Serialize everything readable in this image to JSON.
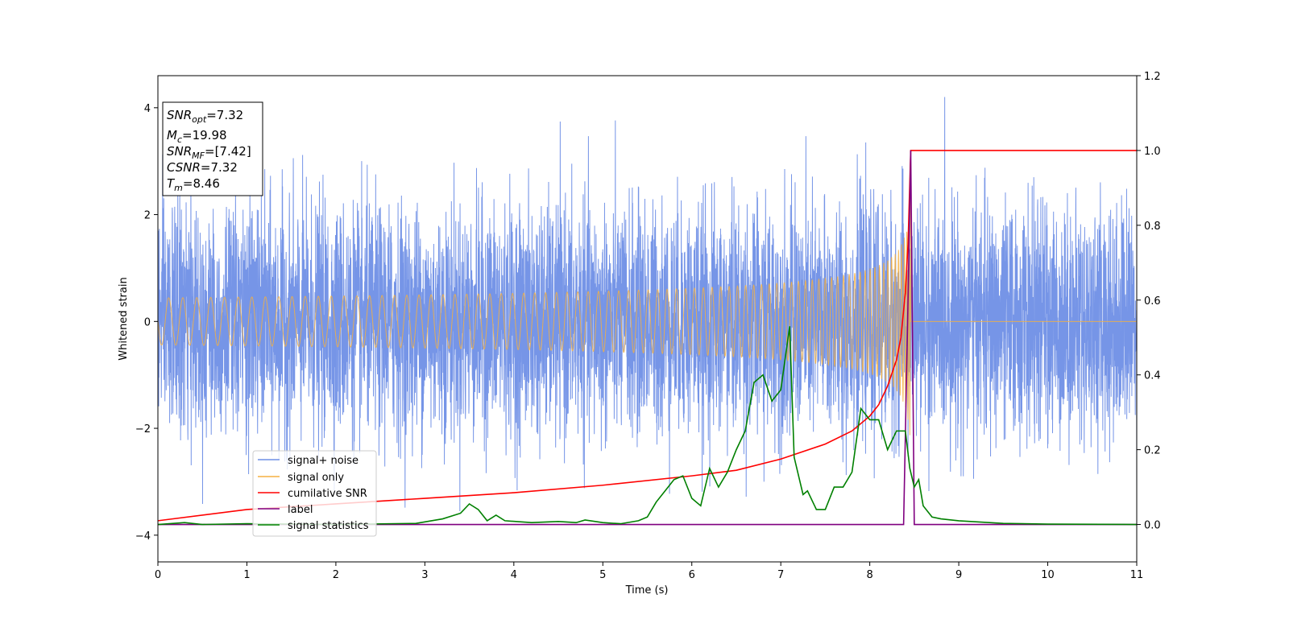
{
  "chart_data": {
    "type": "line",
    "xlabel": "Time (s)",
    "ylabel": "Whitened strain",
    "xlim": [
      0,
      11
    ],
    "ylim_left": [
      -4.5,
      4.6
    ],
    "ylim_right": [
      -0.1,
      1.2
    ],
    "x_ticks": [
      0,
      1,
      2,
      3,
      4,
      5,
      6,
      7,
      8,
      9,
      10,
      11
    ],
    "y_ticks_left": [
      -4,
      -2,
      0,
      2,
      4
    ],
    "y_ticks_left_labels": [
      "−4",
      "−2",
      "0",
      "2",
      "4"
    ],
    "y_ticks_right": [
      0.0,
      0.2,
      0.4,
      0.6,
      0.8,
      1.0,
      1.2
    ],
    "y_ticks_right_labels": [
      "0.0",
      "0.2",
      "0.4",
      "0.6",
      "0.8",
      "1.0",
      "1.2"
    ],
    "legend_position": "bottom-left",
    "info_box": {
      "snr_opt": {
        "base": "SNR",
        "sub": "opt",
        "value": "=7.32"
      },
      "mc": {
        "base": "M",
        "sub": "c",
        "value": "=19.98"
      },
      "snr_mf": {
        "base": "SNR",
        "sub": "MF",
        "value": "=[7.42]"
      },
      "csnr": {
        "base": "CSNR",
        "value": "=7.32"
      },
      "tm": {
        "base": "T",
        "sub": "m",
        "value": "=8.46"
      }
    },
    "series": [
      {
        "name": "signal+ noise",
        "color": "#6f8fe6",
        "axis": "left",
        "kind": "white_noise",
        "std": 1.0,
        "range_max": 4.2,
        "x_range": [
          0,
          11
        ]
      },
      {
        "name": "signal only",
        "color": "#f5b041",
        "axis": "left",
        "kind": "chirp",
        "merger_time": 8.46,
        "peak_amplitude": 2.4,
        "x_range": [
          0,
          11
        ]
      },
      {
        "name": "cumilative SNR",
        "color": "#ff0000",
        "axis": "right",
        "x": [
          0,
          1,
          2,
          3,
          4,
          5,
          6,
          6.5,
          7,
          7.5,
          7.8,
          8.0,
          8.1,
          8.2,
          8.3,
          8.35,
          8.4,
          8.43,
          8.46,
          8.5,
          11
        ],
        "y": [
          0.01,
          0.04,
          0.055,
          0.07,
          0.085,
          0.105,
          0.13,
          0.145,
          0.175,
          0.215,
          0.25,
          0.29,
          0.32,
          0.37,
          0.44,
          0.5,
          0.62,
          0.75,
          1.0,
          1.0,
          1.0
        ]
      },
      {
        "name": "label",
        "color": "#800080",
        "axis": "right",
        "x": [
          0,
          8.38,
          8.43,
          8.46,
          8.5,
          11
        ],
        "y": [
          0,
          0,
          0.6,
          1.0,
          0,
          0
        ]
      },
      {
        "name": "signal statistics",
        "color": "#008000",
        "axis": "right",
        "x": [
          0,
          0.3,
          0.5,
          1,
          2,
          2.9,
          3.2,
          3.4,
          3.5,
          3.6,
          3.7,
          3.8,
          3.9,
          4.2,
          4.5,
          4.7,
          4.8,
          5.0,
          5.2,
          5.4,
          5.5,
          5.6,
          5.7,
          5.8,
          5.9,
          6.0,
          6.1,
          6.2,
          6.3,
          6.4,
          6.5,
          6.6,
          6.7,
          6.8,
          6.9,
          7.0,
          7.1,
          7.15,
          7.25,
          7.3,
          7.4,
          7.5,
          7.6,
          7.7,
          7.8,
          7.9,
          8.0,
          8.1,
          8.2,
          8.3,
          8.4,
          8.45,
          8.5,
          8.55,
          8.6,
          8.7,
          8.8,
          9.0,
          9.5,
          10,
          11
        ],
        "y": [
          0,
          0.005,
          0.0,
          0.002,
          0.0,
          0.003,
          0.015,
          0.03,
          0.055,
          0.04,
          0.01,
          0.025,
          0.01,
          0.005,
          0.008,
          0.005,
          0.012,
          0.005,
          0.002,
          0.01,
          0.02,
          0.06,
          0.09,
          0.12,
          0.13,
          0.07,
          0.05,
          0.15,
          0.1,
          0.14,
          0.2,
          0.25,
          0.38,
          0.4,
          0.33,
          0.36,
          0.53,
          0.18,
          0.08,
          0.09,
          0.04,
          0.04,
          0.1,
          0.1,
          0.14,
          0.31,
          0.28,
          0.28,
          0.2,
          0.25,
          0.25,
          0.15,
          0.1,
          0.12,
          0.05,
          0.02,
          0.015,
          0.01,
          0.003,
          0.001,
          0.0
        ]
      }
    ]
  }
}
